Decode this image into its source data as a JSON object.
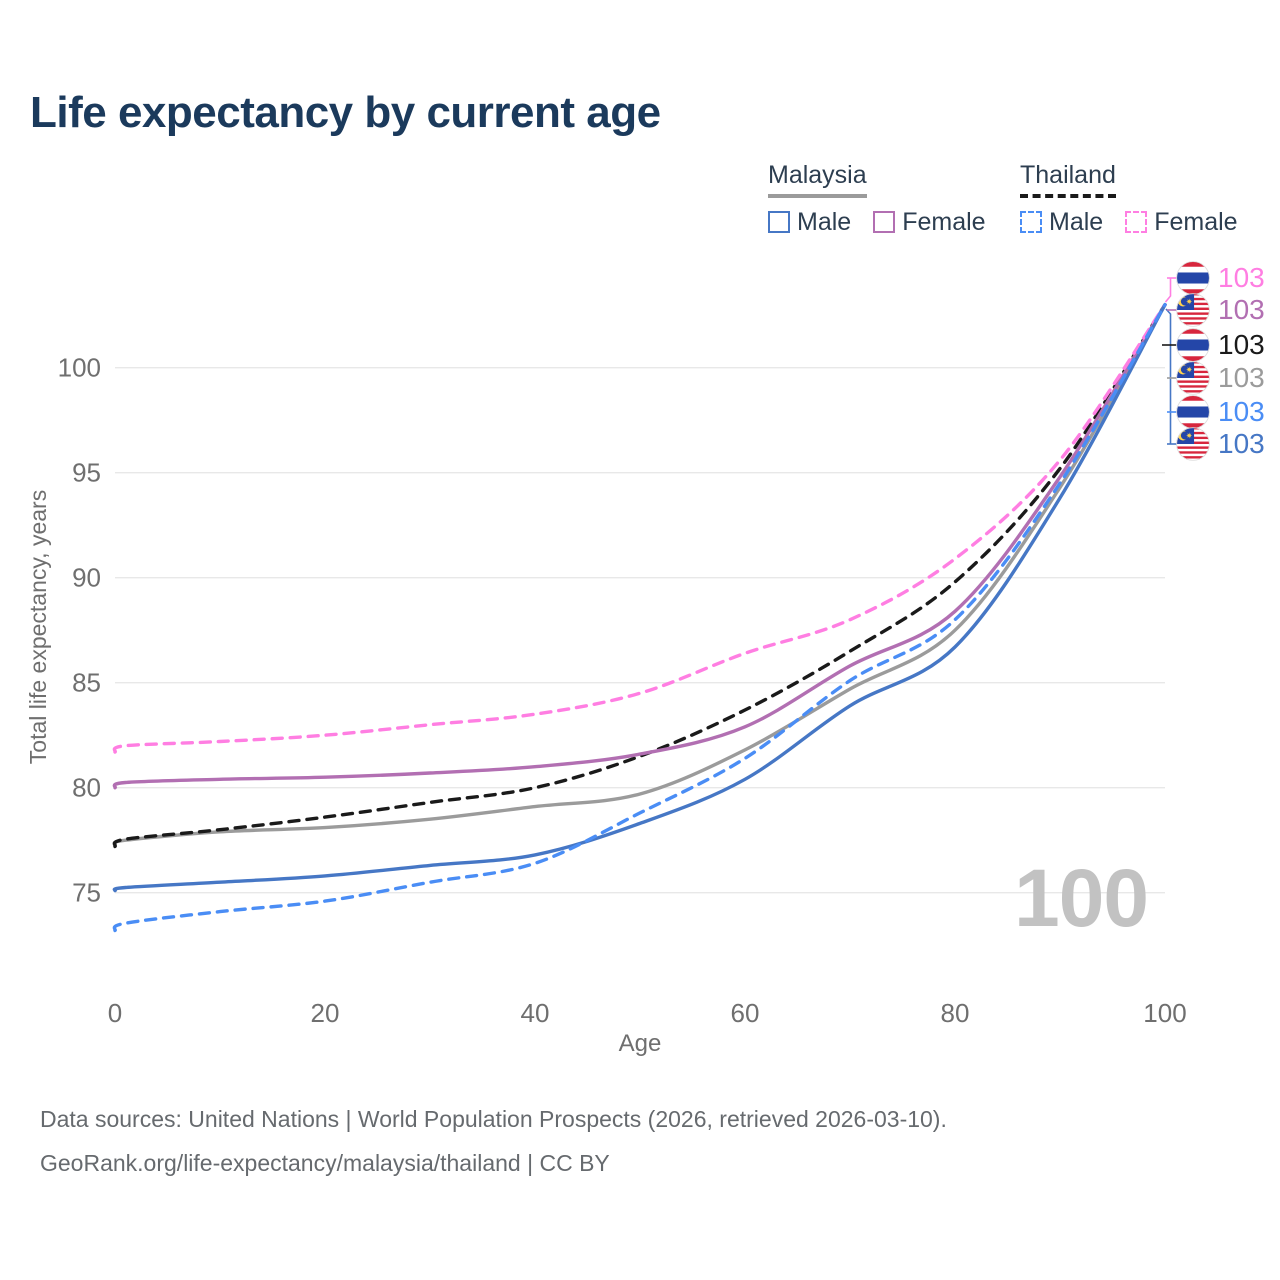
{
  "title": "Life expectancy by current age",
  "legend": {
    "groups": [
      {
        "label": "Malaysia",
        "line_style": "solid",
        "line_color": "#9b9b9b",
        "items": [
          {
            "label": "Male",
            "color": "#4677c5",
            "style": "solid"
          },
          {
            "label": "Female",
            "color": "#b26fb2",
            "style": "solid"
          }
        ]
      },
      {
        "label": "Thailand",
        "line_style": "dashed",
        "line_color": "#1a1a1a",
        "items": [
          {
            "label": "Male",
            "color": "#4a8df5",
            "style": "dashed"
          },
          {
            "label": "Female",
            "color": "#ff7ee2",
            "style": "dashed"
          }
        ]
      }
    ]
  },
  "chart_data": {
    "type": "line",
    "title": "Life expectancy by current age",
    "xlabel": "Age",
    "ylabel": "Total life expectancy, years",
    "xticks": [
      0,
      20,
      40,
      60,
      80,
      100
    ],
    "yticks": [
      75,
      80,
      85,
      90,
      95,
      100
    ],
    "xlim": [
      0,
      100
    ],
    "ylim": [
      72,
      104
    ],
    "grid": "horizontal-only",
    "legend_position": "top-right",
    "x": [
      0,
      1,
      10,
      20,
      30,
      40,
      50,
      60,
      70,
      80,
      90,
      100
    ],
    "series": [
      {
        "name": "Malaysia",
        "country": "malaysia",
        "group": "both sexes",
        "color": "#9b9b9b",
        "dashed": false,
        "values": [
          77.3,
          77.5,
          77.9,
          78.1,
          78.5,
          79.1,
          79.7,
          81.8,
          84.7,
          87.5,
          94.3,
          103
        ]
      },
      {
        "name": "Thailand",
        "country": "thailand",
        "group": "both sexes",
        "color": "#1a1a1a",
        "dashed": true,
        "values": [
          77.2,
          77.55,
          78.0,
          78.6,
          79.3,
          80.0,
          81.5,
          83.7,
          86.5,
          89.8,
          95.2,
          103
        ]
      },
      {
        "name": "Malaysia Female",
        "country": "malaysia",
        "group": "female",
        "color": "#b26fb2",
        "dashed": false,
        "values": [
          80.0,
          80.25,
          80.4,
          80.5,
          80.7,
          81.0,
          81.6,
          82.9,
          85.8,
          88.4,
          94.8,
          103
        ]
      },
      {
        "name": "Thailand Female",
        "country": "thailand",
        "group": "female",
        "color": "#ff7ee2",
        "dashed": true,
        "values": [
          81.7,
          82.0,
          82.2,
          82.5,
          83.0,
          83.5,
          84.5,
          86.4,
          88.0,
          90.9,
          95.6,
          103
        ]
      },
      {
        "name": "Malaysia Male",
        "country": "malaysia",
        "group": "male",
        "color": "#4677c5",
        "dashed": false,
        "values": [
          75.1,
          75.25,
          75.5,
          75.8,
          76.3,
          76.8,
          78.3,
          80.4,
          83.9,
          86.7,
          93.8,
          103
        ]
      },
      {
        "name": "Thailand Male",
        "country": "thailand",
        "group": "male",
        "color": "#4a8df5",
        "dashed": true,
        "values": [
          73.2,
          73.55,
          74.1,
          74.6,
          75.5,
          76.4,
          78.8,
          81.4,
          85.1,
          88.0,
          94.5,
          103
        ]
      }
    ],
    "end_labels": [
      {
        "value": "103",
        "country": "thailand",
        "series": "Thailand Female",
        "color": "#ff7ee2"
      },
      {
        "value": "103",
        "country": "malaysia",
        "series": "Malaysia Female",
        "color": "#b26fb2"
      },
      {
        "value": "103",
        "country": "thailand",
        "series": "Thailand",
        "color": "#1a1a1a"
      },
      {
        "value": "103",
        "country": "malaysia",
        "series": "Malaysia",
        "color": "#9b9b9b"
      },
      {
        "value": "103",
        "country": "thailand",
        "series": "Thailand Male",
        "color": "#4a8df5"
      },
      {
        "value": "103",
        "country": "malaysia",
        "series": "Malaysia Male",
        "color": "#4677c5"
      }
    ]
  },
  "watermark": "100",
  "footer": {
    "line1": "Data sources: United Nations | World Population Prospects (2026, retrieved 2026-03-10).",
    "line2": "GeoRank.org/life-expectancy/malaysia/thailand | CC BY"
  }
}
